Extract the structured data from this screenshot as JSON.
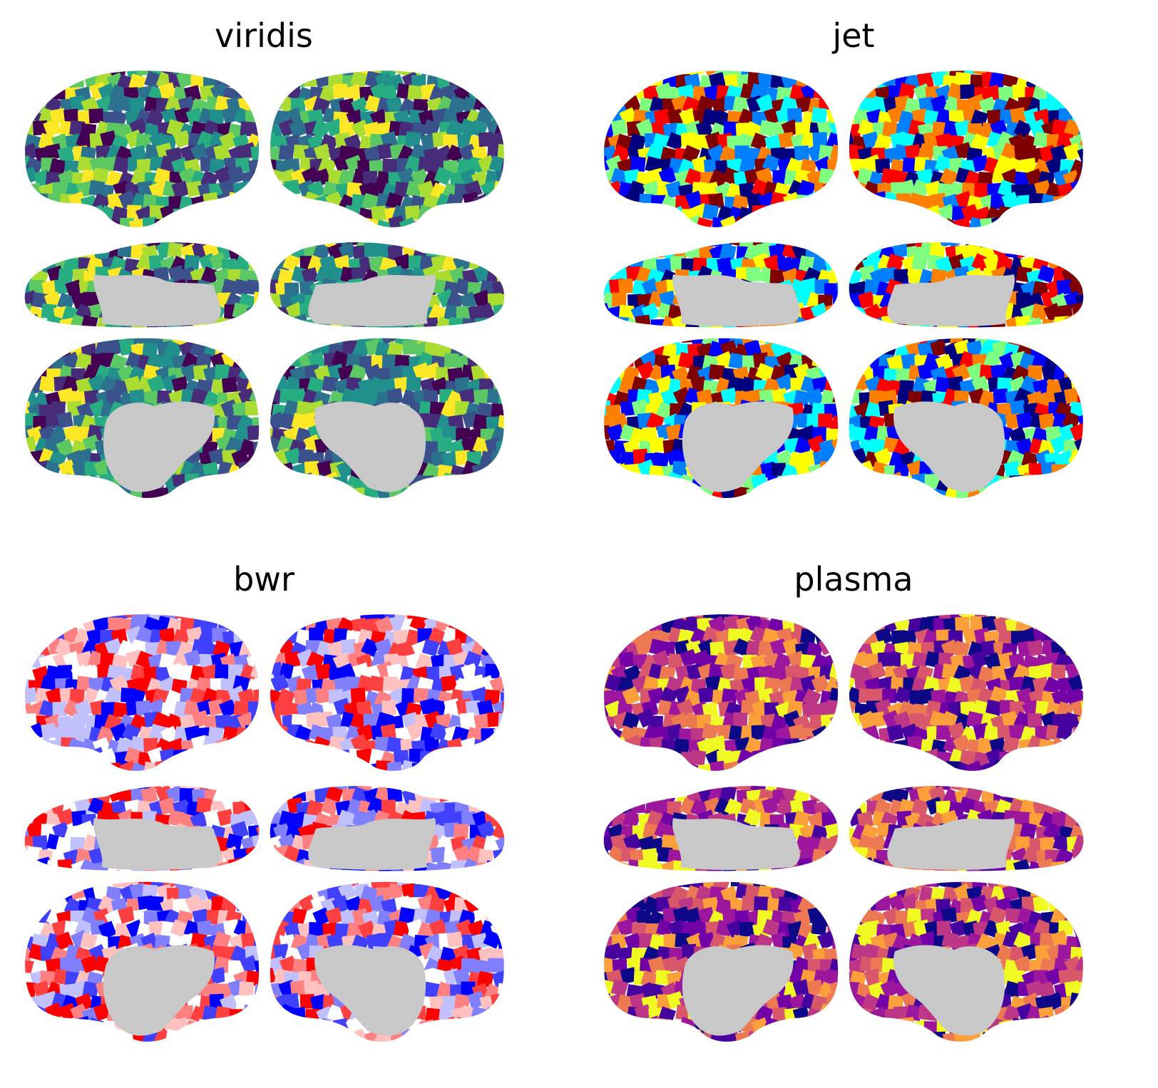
{
  "figure": {
    "background": "#ffffff",
    "medial_wall_color": "#c8c8c8",
    "panels": [
      {
        "title": "viridis",
        "colormap": "viridis",
        "palette": [
          "#440154",
          "#472c7a",
          "#3b518b",
          "#2c718e",
          "#21908d",
          "#27ad81",
          "#5cc863",
          "#aadc32",
          "#fde725"
        ]
      },
      {
        "title": "jet",
        "colormap": "jet",
        "palette": [
          "#00007f",
          "#0000ff",
          "#007fff",
          "#00ffff",
          "#7fff7f",
          "#ffff00",
          "#ff7f00",
          "#ff0000",
          "#7f0000"
        ]
      },
      {
        "title": "bwr",
        "colormap": "bwr",
        "palette": [
          "#0000ff",
          "#4040ff",
          "#8080ff",
          "#c0c0ff",
          "#ffffff",
          "#ffc0c0",
          "#ff8080",
          "#ff4040",
          "#ff0000"
        ]
      },
      {
        "title": "plasma",
        "colormap": "plasma",
        "palette": [
          "#0d0887",
          "#46039f",
          "#7201a8",
          "#9c179e",
          "#bd3786",
          "#d8576b",
          "#ed7953",
          "#fb9f3a",
          "#f0f921"
        ]
      }
    ],
    "views": [
      "lateral-left",
      "lateral-right",
      "dorsal-left",
      "dorsal-right",
      "medial-left",
      "medial-right"
    ]
  }
}
